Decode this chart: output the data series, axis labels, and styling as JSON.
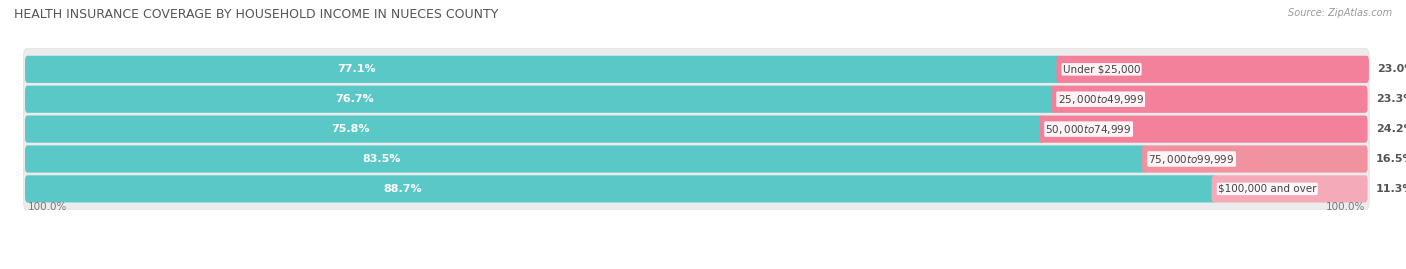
{
  "title": "HEALTH INSURANCE COVERAGE BY HOUSEHOLD INCOME IN NUECES COUNTY",
  "source": "Source: ZipAtlas.com",
  "categories": [
    "Under $25,000",
    "$25,000 to $49,999",
    "$50,000 to $74,999",
    "$75,000 to $99,999",
    "$100,000 and over"
  ],
  "with_coverage": [
    77.1,
    76.7,
    75.8,
    83.5,
    88.7
  ],
  "without_coverage": [
    23.0,
    23.3,
    24.2,
    16.5,
    11.3
  ],
  "color_with": "#5BC8C8",
  "color_without_0": "#F4819B",
  "color_without_1": "#F4819B",
  "color_without_2": "#F4819B",
  "color_without_3": "#F0929F",
  "color_without_4": "#F5AABA",
  "color_with_bg": "#DAEAEA",
  "row_bg": "#EFEFEF",
  "title_fontsize": 9,
  "label_fontsize": 8,
  "tick_fontsize": 7.5,
  "legend_fontsize": 8,
  "x_left_label": "100.0%",
  "x_right_label": "100.0%"
}
